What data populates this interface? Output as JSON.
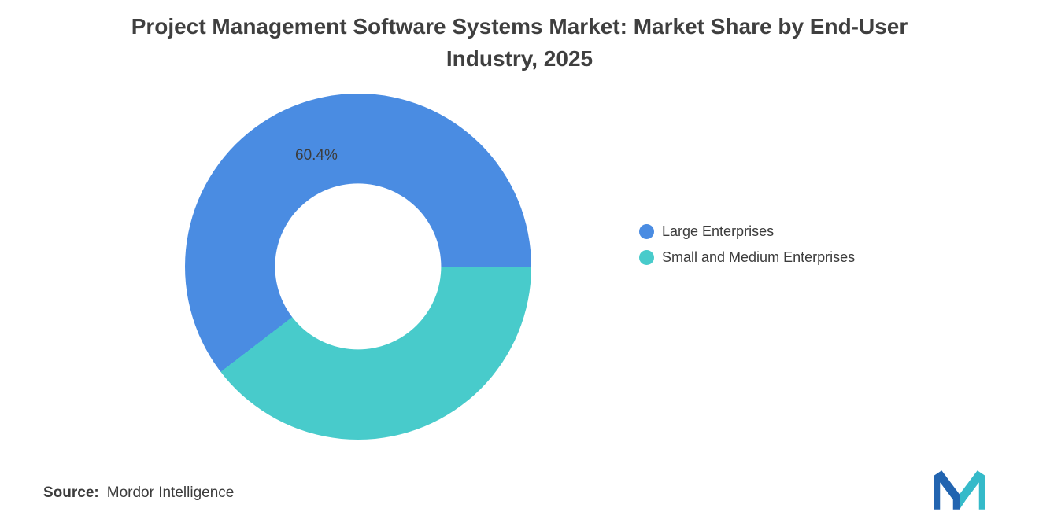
{
  "title": "Project Management Software Systems Market: Market Share by End-User Industry, 2025",
  "chart_data": {
    "type": "pie",
    "subtype": "donut",
    "title": "Project Management Software Systems Market: Market Share by End-User Industry, 2025",
    "series": [
      {
        "name": "Large Enterprises",
        "value": 60.4,
        "color": "#4A8CE2"
      },
      {
        "name": "Small and Medium Enterprises",
        "value": 39.6,
        "color": "#48CBCB"
      }
    ],
    "data_label": "60.4%",
    "start_angle_deg": 232.56,
    "donut_hole_ratio": 0.48,
    "legend_position": "right",
    "grid": false
  },
  "source": {
    "label": "Source:",
    "text": "Mordor Intelligence"
  },
  "logo": {
    "blue": "#2264B0",
    "teal": "#35BAC9"
  }
}
